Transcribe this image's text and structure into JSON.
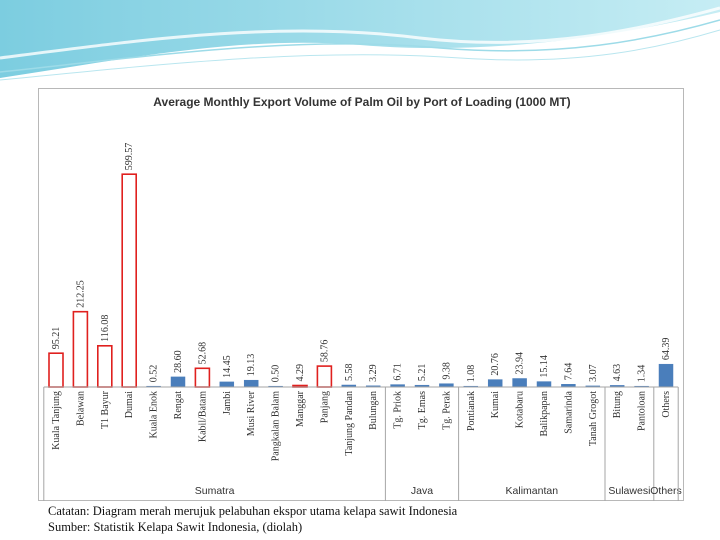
{
  "chart_data": {
    "type": "bar",
    "title": "Average Monthly Export Volume of Palm Oil by Port of Loading (1000 MT)",
    "xlabel": "",
    "ylabel": "",
    "ylim": [
      0,
      620
    ],
    "grid": false,
    "legend": "none",
    "categories": [
      "Kuala Tanjung",
      "Belawan",
      "T1 Bayur",
      "Dumai",
      "Kuala Enok",
      "Rengat",
      "Kabil/Batam",
      "Jambi",
      "Musi River",
      "Pangkalan Balam",
      "Manggar",
      "Panjang",
      "Tanjung Pandan",
      "Bulungan",
      "Tg. Priok",
      "Tg. Emas",
      "Tg. Perak",
      "Pontianak",
      "Kumai",
      "Kotabaru",
      "Balikpapan",
      "Samarinda",
      "Tanah Grogot",
      "Bitung",
      "Pantoloan",
      "Others"
    ],
    "values": [
      95.21,
      212.25,
      116.08,
      599.57,
      0.52,
      28.6,
      52.68,
      14.45,
      19.13,
      0.5,
      4.29,
      58.76,
      5.58,
      3.29,
      6.71,
      5.21,
      9.38,
      1.08,
      20.76,
      23.94,
      15.14,
      7.64,
      3.07,
      4.63,
      1.34,
      64.39
    ],
    "value_labels": [
      "95.21",
      "212.25",
      "116.08",
      "599.57",
      "0.52",
      "28.60",
      "52.68",
      "14.45",
      "19.13",
      "0.50",
      "4.29",
      "58.76",
      "5.58",
      "3.29",
      "6.71",
      "5.21",
      "9.38",
      "1.08",
      "20.76",
      "23.94",
      "15.14",
      "7.64",
      "3.07",
      "4.63",
      "1.34",
      "64.39"
    ],
    "highlighted": [
      true,
      true,
      true,
      true,
      false,
      false,
      true,
      false,
      false,
      false,
      true,
      true,
      false,
      false,
      false,
      false,
      false,
      false,
      false,
      false,
      false,
      false,
      false,
      false,
      false,
      false
    ],
    "colors": {
      "highlight": "#e0201e",
      "normal": "#4a7ebb",
      "axis": "#a6a6a6",
      "text": "#333333"
    },
    "groups": [
      {
        "name": "Sumatra",
        "start": 0,
        "end": 13
      },
      {
        "name": "Java",
        "start": 14,
        "end": 16
      },
      {
        "name": "Kalimantan",
        "start": 17,
        "end": 22
      },
      {
        "name": "Sulawesi",
        "start": 23,
        "end": 24
      },
      {
        "name": "Others",
        "start": 25,
        "end": 25
      }
    ]
  },
  "notes": {
    "note_1": "Catatan: Diagram merah merujuk pelabuhan ekspor utama kelapa sawit Indonesia",
    "note_2": "Sumber: Statistik Kelapa Sawit Indonesia, (diolah)"
  }
}
